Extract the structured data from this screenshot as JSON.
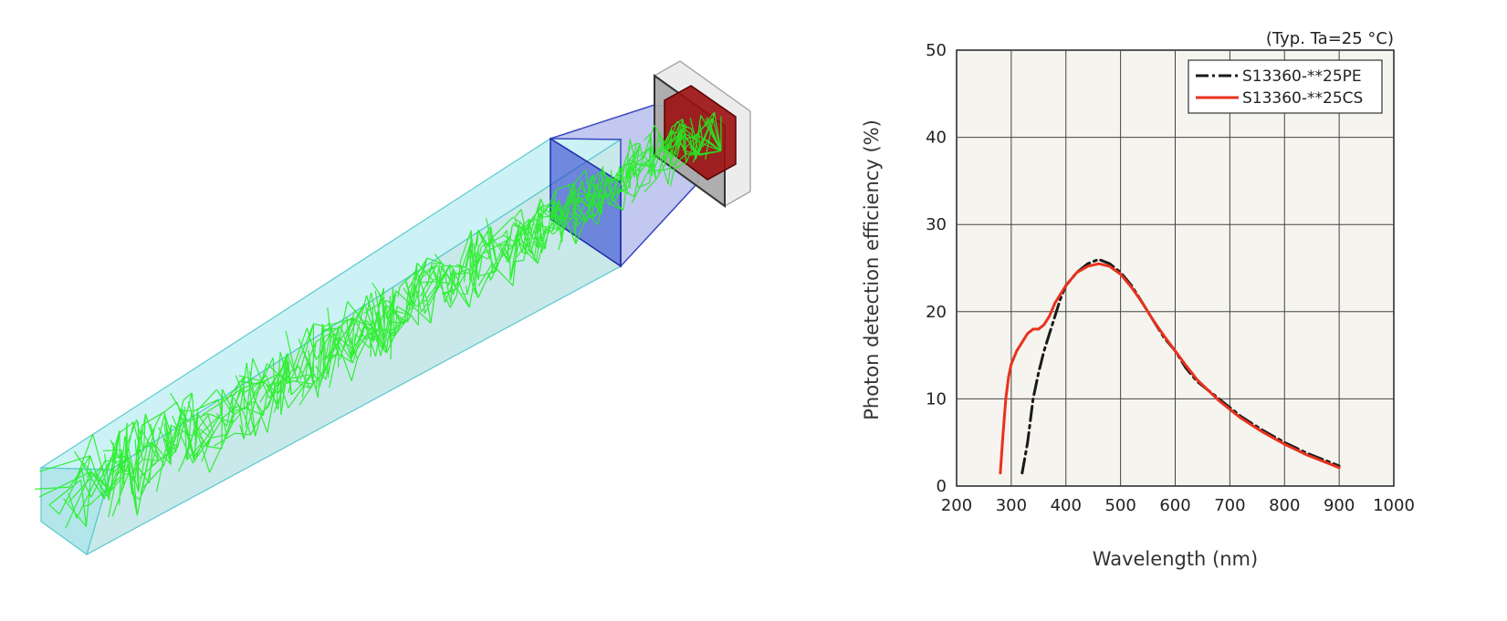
{
  "chart_data": {
    "type": "line",
    "note": "(Typ. Ta=25 °C)",
    "xlabel": "Wavelength (nm)",
    "ylabel": "Photon detection efficiency (%)",
    "xlim": [
      200,
      1000
    ],
    "ylim": [
      0,
      50
    ],
    "xticks": [
      200,
      300,
      400,
      500,
      600,
      700,
      800,
      900,
      1000
    ],
    "yticks": [
      0,
      10,
      20,
      30,
      40,
      50
    ],
    "grid": true,
    "legend_position": "top-right",
    "series": [
      {
        "name": "S13360-**25PE",
        "color": "#1a1a1a",
        "dash": "dash-dot",
        "x": [
          320,
          330,
          340,
          350,
          360,
          370,
          380,
          390,
          400,
          420,
          440,
          460,
          480,
          500,
          520,
          540,
          560,
          580,
          600,
          620,
          640,
          660,
          680,
          700,
          720,
          740,
          760,
          780,
          800,
          820,
          840,
          860,
          880,
          900
        ],
        "y": [
          1.5,
          5,
          10,
          13,
          15.5,
          17.5,
          19.5,
          21.5,
          23,
          24.5,
          25.5,
          26,
          25.5,
          24.5,
          23,
          21,
          19,
          17,
          15.5,
          13.5,
          12,
          11,
          10,
          9,
          8,
          7.2,
          6.4,
          5.7,
          5,
          4.4,
          3.8,
          3.3,
          2.8,
          2.3
        ]
      },
      {
        "name": "S13360-**25CS",
        "color": "#e8321e",
        "dash": "solid",
        "x": [
          280,
          285,
          290,
          295,
          300,
          310,
          320,
          330,
          340,
          350,
          360,
          370,
          380,
          390,
          400,
          420,
          440,
          460,
          480,
          500,
          520,
          540,
          560,
          580,
          600,
          620,
          640,
          660,
          680,
          700,
          720,
          740,
          760,
          780,
          800,
          820,
          840,
          860,
          880,
          900
        ],
        "y": [
          1.5,
          6,
          10,
          12.5,
          14,
          15.5,
          16.5,
          17.5,
          18,
          18,
          18.5,
          19.5,
          21,
          22,
          23,
          24.5,
          25.2,
          25.5,
          25.2,
          24.3,
          22.8,
          21,
          19,
          17.2,
          15.5,
          13.8,
          12.2,
          11,
          9.8,
          8.8,
          7.8,
          7,
          6.2,
          5.5,
          4.8,
          4.2,
          3.6,
          3.1,
          2.6,
          2.1
        ]
      }
    ]
  }
}
